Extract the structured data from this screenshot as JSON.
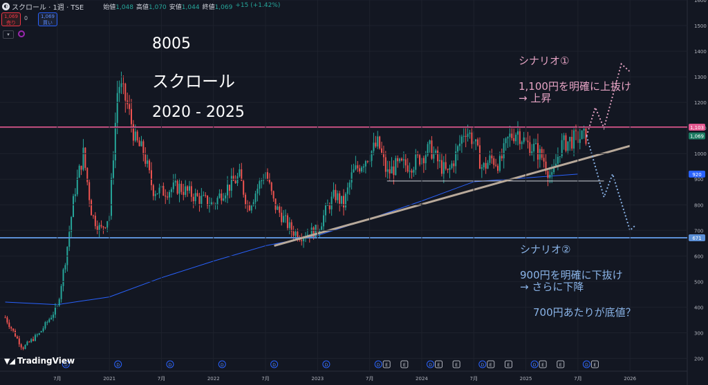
{
  "header": {
    "symbol": "スクロール · 1週 · TSE",
    "ohlc": [
      {
        "k": "始値",
        "v": "1,048"
      },
      {
        "k": "高値",
        "v": "1,070"
      },
      {
        "k": "安値",
        "v": "1,044"
      },
      {
        "k": "終値",
        "v": "1,069"
      },
      {
        "k": "",
        "v": "+15 (+1.42%)"
      }
    ],
    "sell_price": "1,069",
    "sell_label": "売り",
    "qty": "0",
    "buy_price": "1,069",
    "buy_label": "買い"
  },
  "brand": "TradingView",
  "annotations": {
    "code": "8005",
    "name": "スクロール",
    "period": "2020 - 2025",
    "s1_title": "シナリオ①",
    "s1_line1": "1,100円を明確に上抜け",
    "s1_line2": "→ 上昇",
    "s2_title": "シナリオ②",
    "s2_line1": "900円を明確に下抜け",
    "s2_line2": "→ さらに下降",
    "s2_line3": "700円あたりが底値？"
  },
  "colors": {
    "background": "#131722",
    "up": "#26a69a",
    "down": "#ef5350",
    "ma": "#2962ff",
    "resistance": "#e3578f",
    "support": "#5b8fd6",
    "trend": "#b8a99a",
    "scenario1": "#e6a3c4",
    "scenario2": "#8ab4e8"
  },
  "chart_data": {
    "type": "candlestick",
    "timeframe": "1週",
    "ylim": [
      150,
      1600
    ],
    "y_ticks": [
      200,
      300,
      400,
      500,
      600,
      700,
      800,
      900,
      1000,
      1100,
      1200,
      1300,
      1400,
      1500,
      1600
    ],
    "x_ticks": [
      "7月",
      "2021",
      "7月",
      "2022",
      "7月",
      "2023",
      "7月",
      "2024",
      "7月",
      "2025",
      "7月",
      "2026"
    ],
    "x_tick_dates": [
      "2020-07",
      "2021-01",
      "2021-07",
      "2022-01",
      "2022-07",
      "2023-01",
      "2023-07",
      "2024-01",
      "2024-07",
      "2025-01",
      "2025-07",
      "2026-01"
    ],
    "price_labels": [
      {
        "value": 1103,
        "label": "1,103"
      },
      {
        "value": 1069,
        "label": "1,069"
      },
      {
        "value": 920,
        "label": "920"
      },
      {
        "value": 671,
        "label": "671"
      }
    ],
    "horizontal_lines": [
      {
        "name": "resistance",
        "value": 1103
      },
      {
        "name": "support",
        "value": 671
      },
      {
        "name": "range-low",
        "value": 893,
        "from": "2023-09",
        "to": "2025-10"
      }
    ],
    "trend_line": {
      "from": {
        "date": "2022-08",
        "value": 640
      },
      "to": {
        "date": "2026-01",
        "value": 1030
      }
    },
    "moving_average": [
      {
        "date": "2020-01",
        "value": 420
      },
      {
        "date": "2020-07",
        "value": 410
      },
      {
        "date": "2021-01",
        "value": 440
      },
      {
        "date": "2021-07",
        "value": 515
      },
      {
        "date": "2022-01",
        "value": 580
      },
      {
        "date": "2022-07",
        "value": 640
      },
      {
        "date": "2023-01",
        "value": 680
      },
      {
        "date": "2023-07",
        "value": 745
      },
      {
        "date": "2024-01",
        "value": 815
      },
      {
        "date": "2024-07",
        "value": 890
      },
      {
        "date": "2025-01",
        "value": 905
      },
      {
        "date": "2025-07",
        "value": 920
      }
    ],
    "series": [
      {
        "date": "2020-01",
        "value": 360
      },
      {
        "date": "2020-03",
        "value": 240
      },
      {
        "date": "2020-05",
        "value": 300
      },
      {
        "date": "2020-07",
        "value": 400
      },
      {
        "date": "2020-08",
        "value": 600
      },
      {
        "date": "2020-09",
        "value": 850
      },
      {
        "date": "2020-10",
        "value": 1000
      },
      {
        "date": "2020-11",
        "value": 760
      },
      {
        "date": "2020-12",
        "value": 700
      },
      {
        "date": "2021-01",
        "value": 760
      },
      {
        "date": "2021-02",
        "value": 1280
      },
      {
        "date": "2021-03",
        "value": 1200
      },
      {
        "date": "2021-04",
        "value": 1050
      },
      {
        "date": "2021-05",
        "value": 1000
      },
      {
        "date": "2021-06",
        "value": 860
      },
      {
        "date": "2021-07",
        "value": 850
      },
      {
        "date": "2021-09",
        "value": 870
      },
      {
        "date": "2021-11",
        "value": 830
      },
      {
        "date": "2022-01",
        "value": 800
      },
      {
        "date": "2022-02",
        "value": 850
      },
      {
        "date": "2022-04",
        "value": 910
      },
      {
        "date": "2022-05",
        "value": 790
      },
      {
        "date": "2022-06",
        "value": 860
      },
      {
        "date": "2022-07",
        "value": 930
      },
      {
        "date": "2022-08",
        "value": 800
      },
      {
        "date": "2022-10",
        "value": 700
      },
      {
        "date": "2022-11",
        "value": 680
      },
      {
        "date": "2023-01",
        "value": 700
      },
      {
        "date": "2023-02",
        "value": 780
      },
      {
        "date": "2023-03",
        "value": 840
      },
      {
        "date": "2023-04",
        "value": 800
      },
      {
        "date": "2023-05",
        "value": 920
      },
      {
        "date": "2023-06",
        "value": 960
      },
      {
        "date": "2023-07",
        "value": 1000
      },
      {
        "date": "2023-08",
        "value": 1040
      },
      {
        "date": "2023-09",
        "value": 920
      },
      {
        "date": "2023-10",
        "value": 950
      },
      {
        "date": "2023-12",
        "value": 960
      },
      {
        "date": "2024-02",
        "value": 1020
      },
      {
        "date": "2024-03",
        "value": 960
      },
      {
        "date": "2024-04",
        "value": 920
      },
      {
        "date": "2024-05",
        "value": 1000
      },
      {
        "date": "2024-06",
        "value": 1100
      },
      {
        "date": "2024-07",
        "value": 1050
      },
      {
        "date": "2024-08",
        "value": 940
      },
      {
        "date": "2024-09",
        "value": 980
      },
      {
        "date": "2024-10",
        "value": 960
      },
      {
        "date": "2024-11",
        "value": 1060
      },
      {
        "date": "2024-12",
        "value": 1090
      },
      {
        "date": "2025-01",
        "value": 1040
      },
      {
        "date": "2025-02",
        "value": 1020
      },
      {
        "date": "2025-03",
        "value": 980
      },
      {
        "date": "2025-04",
        "value": 900
      },
      {
        "date": "2025-05",
        "value": 1030
      },
      {
        "date": "2025-06",
        "value": 1050
      },
      {
        "date": "2025-07",
        "value": 1060
      },
      {
        "date": "2025-08",
        "value": 1069
      }
    ],
    "scenario_paths": [
      {
        "name": "シナリオ①",
        "points": [
          {
            "date": "2025-08",
            "value": 1069
          },
          {
            "date": "2025-09",
            "value": 1180
          },
          {
            "date": "2025-10",
            "value": 1100
          },
          {
            "date": "2025-12",
            "value": 1350
          },
          {
            "date": "2026-01",
            "value": 1320
          }
        ]
      },
      {
        "name": "シナリオ②",
        "points": [
          {
            "date": "2025-08",
            "value": 1069
          },
          {
            "date": "2025-10",
            "value": 830
          },
          {
            "date": "2025-11",
            "value": 920
          },
          {
            "date": "2026-01",
            "value": 700
          },
          {
            "date": "2026-01-20",
            "value": 720
          }
        ]
      }
    ],
    "event_markers": [
      {
        "date": "2020-08",
        "type": "D"
      },
      {
        "date": "2021-02",
        "type": "D"
      },
      {
        "date": "2021-08",
        "type": "D"
      },
      {
        "date": "2022-02",
        "type": "D"
      },
      {
        "date": "2022-08",
        "type": "D"
      },
      {
        "date": "2023-02",
        "type": "D"
      },
      {
        "date": "2023-08",
        "type": "D"
      },
      {
        "date": "2023-08",
        "type": "E"
      },
      {
        "date": "2023-11",
        "type": "E"
      },
      {
        "date": "2024-02",
        "type": "D"
      },
      {
        "date": "2024-02",
        "type": "E"
      },
      {
        "date": "2024-05",
        "type": "E"
      },
      {
        "date": "2024-08",
        "type": "D"
      },
      {
        "date": "2024-08",
        "type": "E"
      },
      {
        "date": "2024-11",
        "type": "E"
      },
      {
        "date": "2025-02",
        "type": "D"
      },
      {
        "date": "2025-02",
        "type": "E"
      },
      {
        "date": "2025-05",
        "type": "E"
      },
      {
        "date": "2025-08",
        "type": "D"
      },
      {
        "date": "2025-08",
        "type": "E"
      }
    ]
  }
}
